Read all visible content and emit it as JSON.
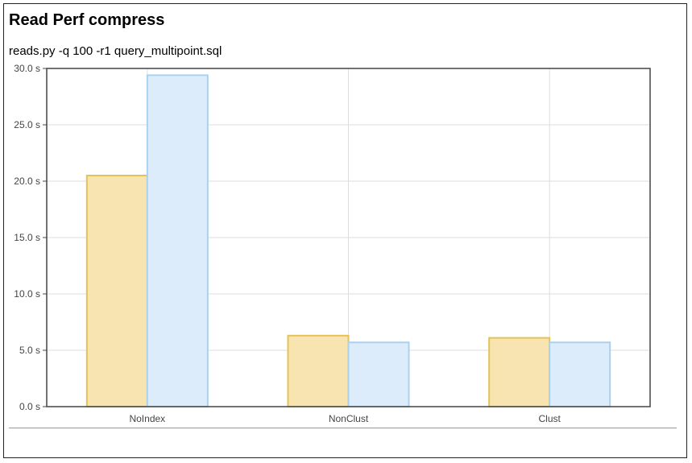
{
  "page": {
    "title": "Read Perf compress",
    "subtitle": "reads.py -q 100 -r1 query_multipoint.sql"
  },
  "colors": {
    "series_a_fill": "#f7e4b0",
    "series_a_stroke": "#e6c256",
    "series_b_fill": "#dcecfb",
    "series_b_stroke": "#a9d2f0",
    "grid": "#dddddd",
    "axis": "#444444"
  },
  "chart_data": {
    "type": "bar",
    "title": "",
    "xlabel": "",
    "ylabel": "",
    "categories": [
      "NoIndex",
      "NonClust",
      "Clust"
    ],
    "series": [
      {
        "values": [
          20.5,
          6.3,
          6.1
        ]
      },
      {
        "values": [
          29.4,
          5.7,
          5.7
        ]
      }
    ],
    "ylim": [
      0,
      30
    ],
    "yticks": [
      0,
      5,
      10,
      15,
      20,
      25,
      30
    ],
    "ytick_labels": [
      "0.0 s",
      "5.0 s",
      "10.0 s",
      "15.0 s",
      "20.0 s",
      "25.0 s",
      "30.0 s"
    ],
    "grid": true,
    "legend": "none"
  }
}
